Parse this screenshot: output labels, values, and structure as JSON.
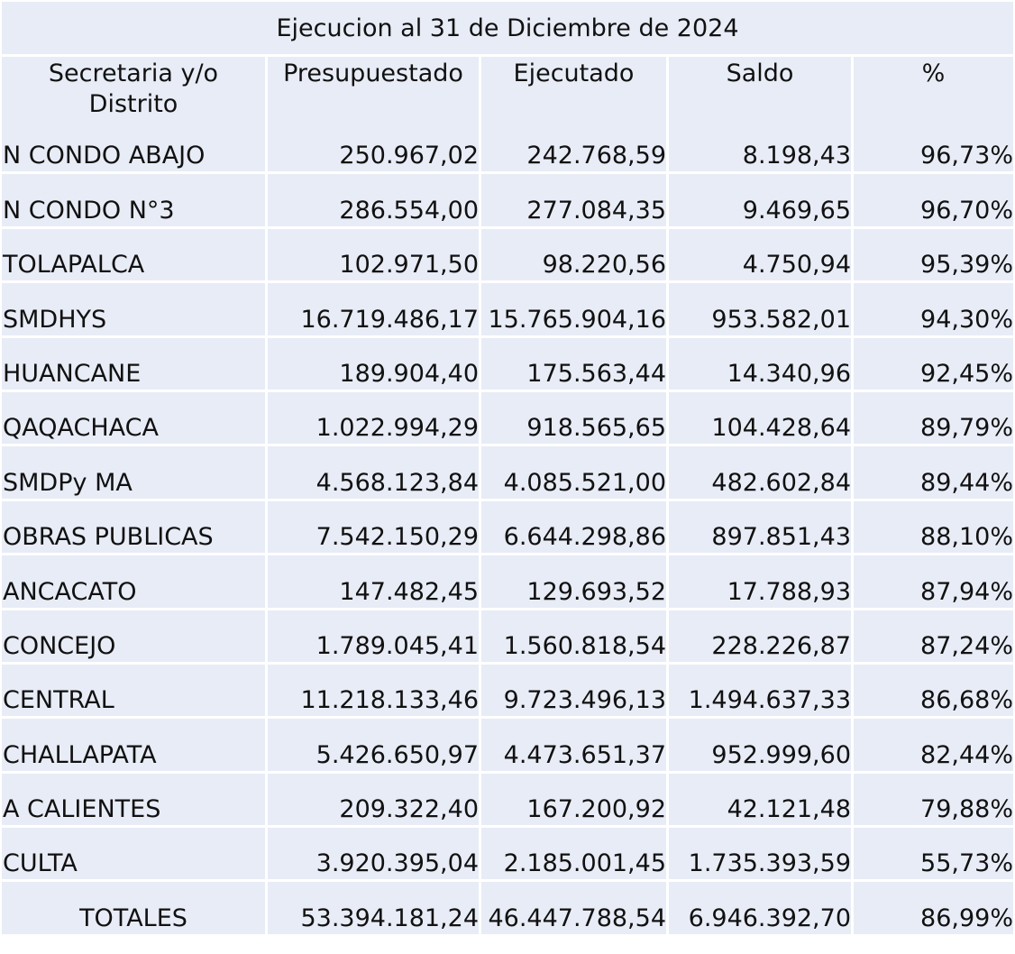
{
  "title": "Ejecucion al 31 de Diciembre de 2024",
  "headers": [
    "Secretaria y/o Distrito",
    "Presupuestado",
    "Ejecutado",
    "Saldo",
    "%"
  ],
  "rows": [
    {
      "name": "N CONDO ABAJO",
      "presupuestado": "250.967,02",
      "ejecutado": "242.768,59",
      "saldo": "8.198,43",
      "pct": "96,73%"
    },
    {
      "name": "N CONDO N°3",
      "presupuestado": "286.554,00",
      "ejecutado": "277.084,35",
      "saldo": "9.469,65",
      "pct": "96,70%"
    },
    {
      "name": "TOLAPALCA",
      "presupuestado": "102.971,50",
      "ejecutado": "98.220,56",
      "saldo": "4.750,94",
      "pct": "95,39%"
    },
    {
      "name": "SMDHYS",
      "presupuestado": "16.719.486,17",
      "ejecutado": "15.765.904,16",
      "saldo": "953.582,01",
      "pct": "94,30%"
    },
    {
      "name": "HUANCANE",
      "presupuestado": "189.904,40",
      "ejecutado": "175.563,44",
      "saldo": "14.340,96",
      "pct": "92,45%"
    },
    {
      "name": "QAQACHACA",
      "presupuestado": "1.022.994,29",
      "ejecutado": "918.565,65",
      "saldo": "104.428,64",
      "pct": "89,79%"
    },
    {
      "name": "SMDPy MA",
      "presupuestado": "4.568.123,84",
      "ejecutado": "4.085.521,00",
      "saldo": "482.602,84",
      "pct": "89,44%"
    },
    {
      "name": "OBRAS PUBLICAS",
      "presupuestado": "7.542.150,29",
      "ejecutado": "6.644.298,86",
      "saldo": "897.851,43",
      "pct": "88,10%"
    },
    {
      "name": "ANCACATO",
      "presupuestado": "147.482,45",
      "ejecutado": "129.693,52",
      "saldo": "17.788,93",
      "pct": "87,94%"
    },
    {
      "name": "CONCEJO",
      "presupuestado": "1.789.045,41",
      "ejecutado": "1.560.818,54",
      "saldo": "228.226,87",
      "pct": "87,24%"
    },
    {
      "name": "CENTRAL",
      "presupuestado": "11.218.133,46",
      "ejecutado": "9.723.496,13",
      "saldo": "1.494.637,33",
      "pct": "86,68%"
    },
    {
      "name": "CHALLAPATA",
      "presupuestado": "5.426.650,97",
      "ejecutado": "4.473.651,37",
      "saldo": "952.999,60",
      "pct": "82,44%"
    },
    {
      "name": "A CALIENTES",
      "presupuestado": "209.322,40",
      "ejecutado": "167.200,92",
      "saldo": "42.121,48",
      "pct": "79,88%"
    },
    {
      "name": "CULTA",
      "presupuestado": "3.920.395,04",
      "ejecutado": "2.185.001,45",
      "saldo": "1.735.393,59",
      "pct": "55,73%"
    }
  ],
  "totals": {
    "name": "TOTALES",
    "presupuestado": "53.394.181,24",
    "ejecutado": "46.447.788,54",
    "saldo": "6.946.392,70",
    "pct": "86,99%"
  }
}
